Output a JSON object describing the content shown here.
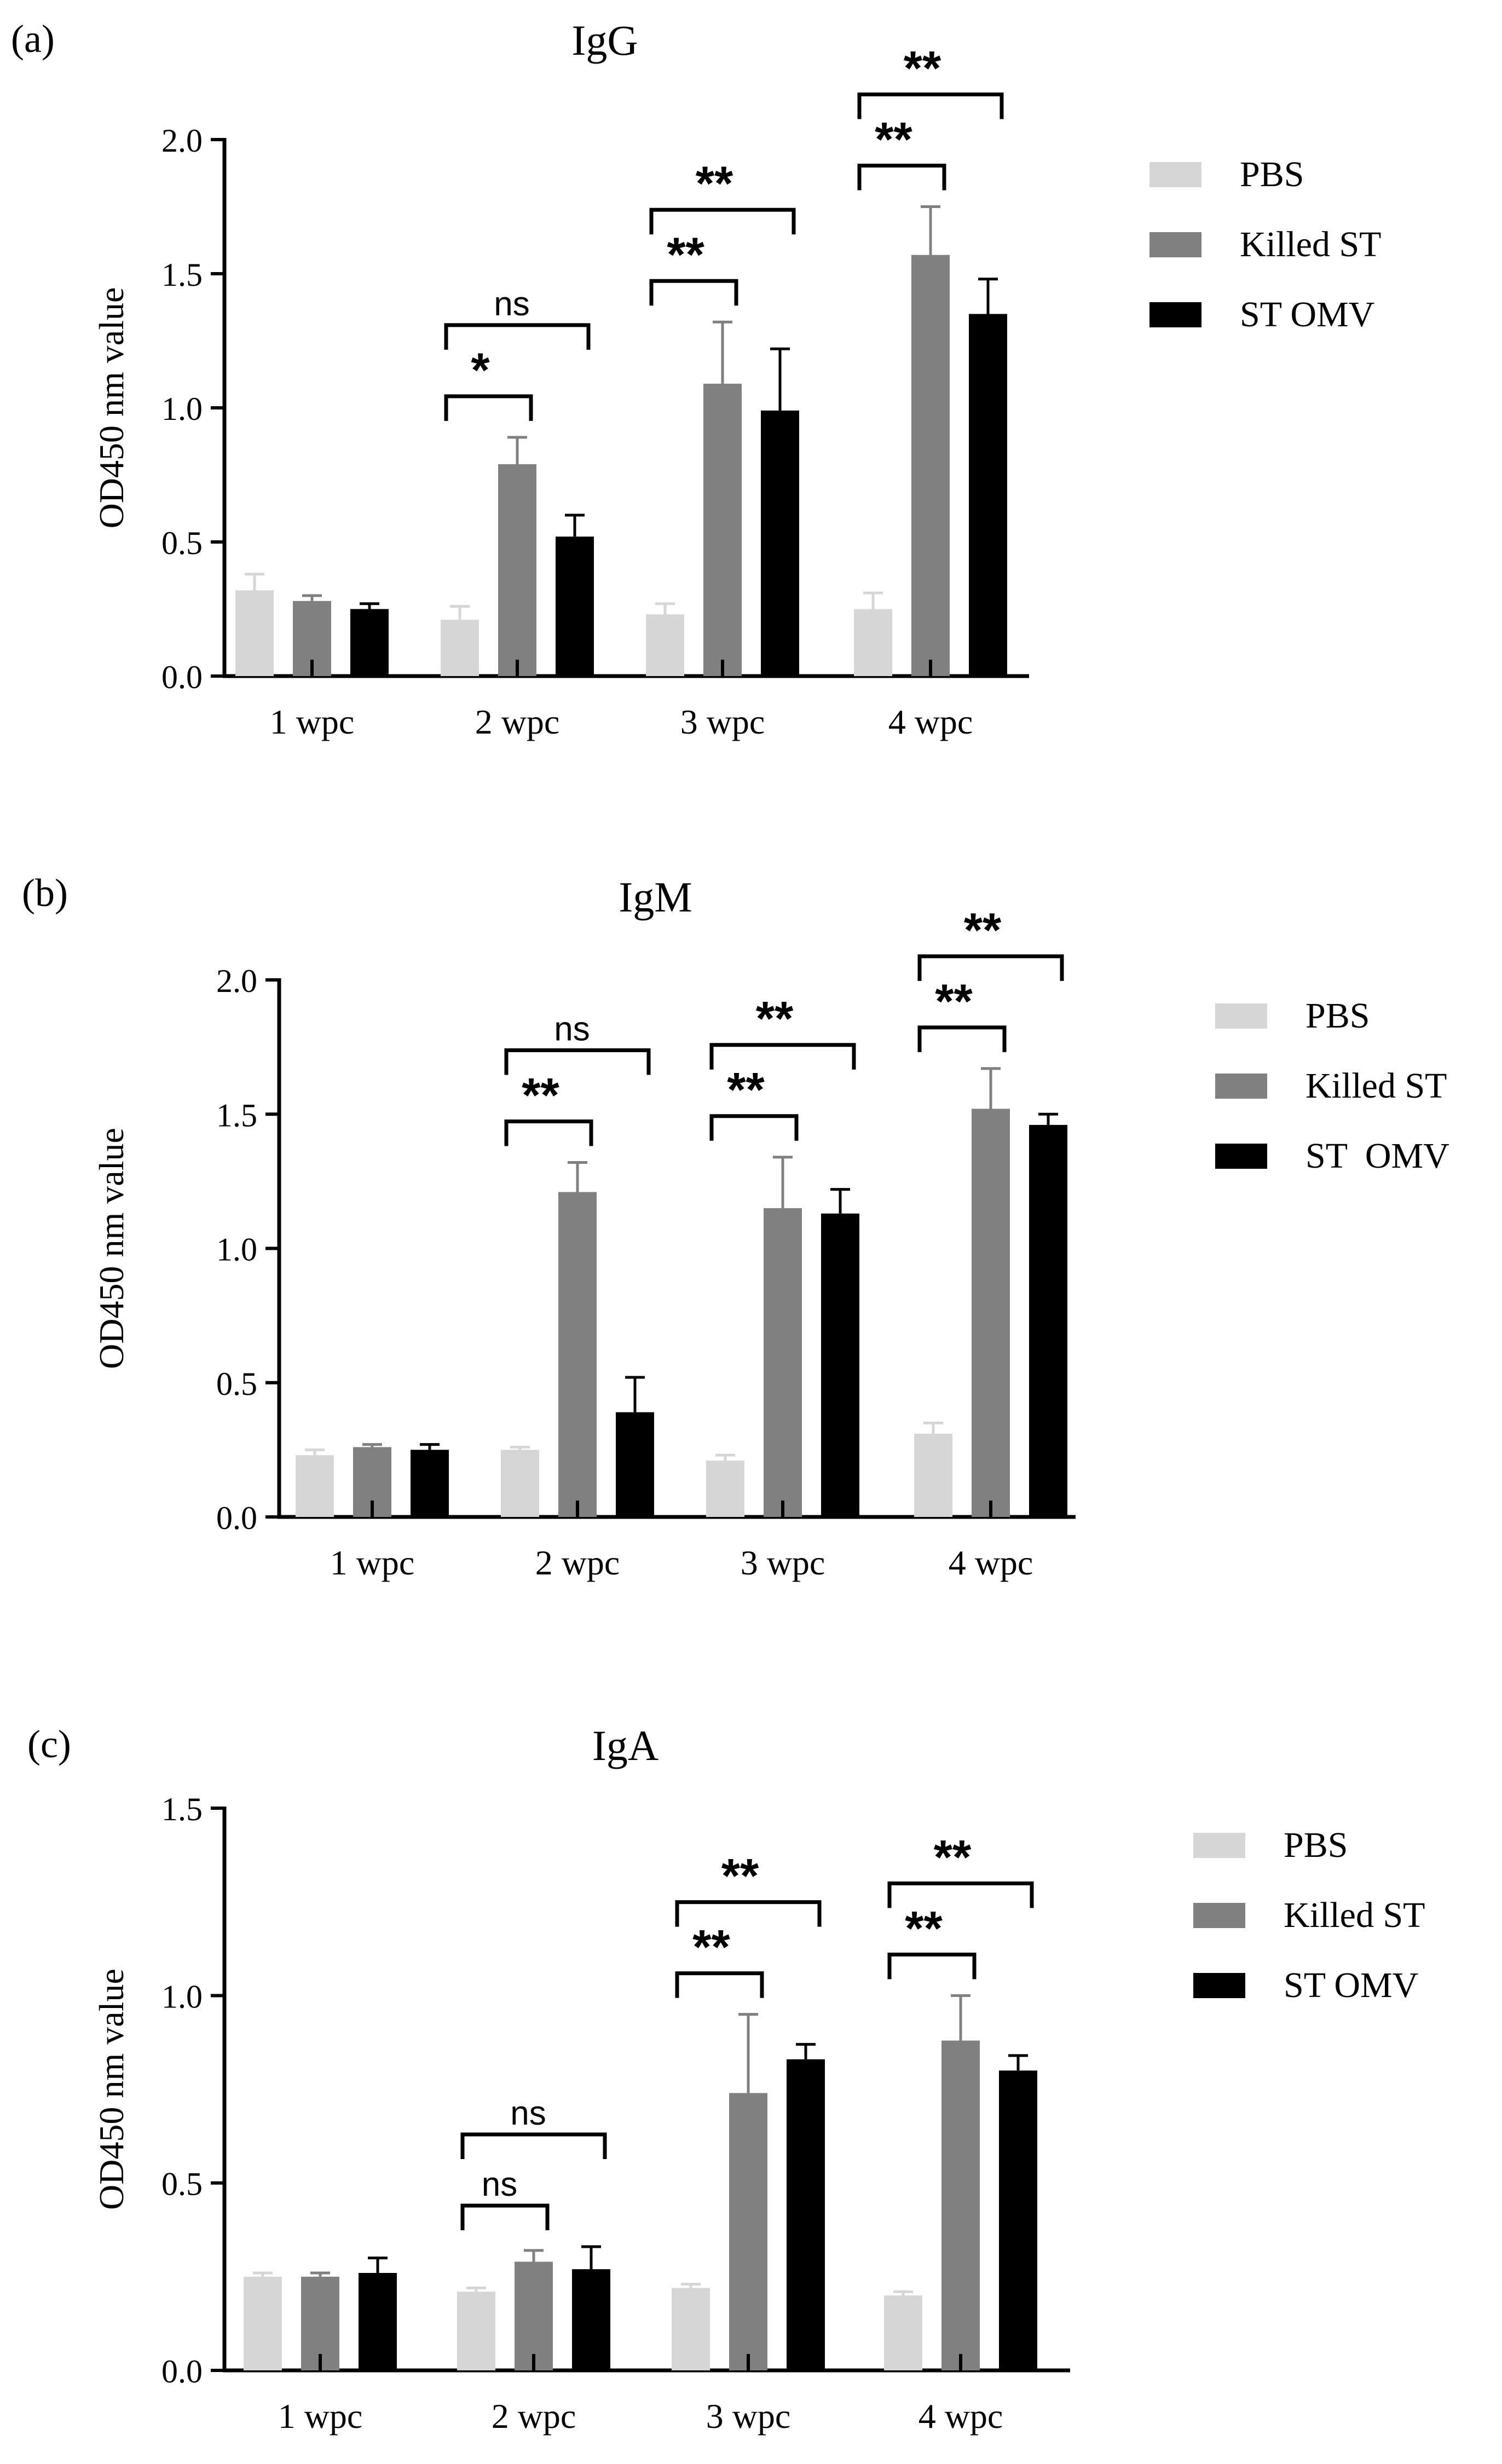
{
  "figure": {
    "panels": [
      {
        "panel_label": "(a)",
        "title": "IgG",
        "ylabel": "OD450 nm value",
        "yticks": [
          "0.0",
          "0.5",
          "1.0",
          "1.5",
          "2.0"
        ],
        "categories": [
          "1 wpc",
          "2 wpc",
          "3 wpc",
          "4 wpc"
        ],
        "legend": [
          "PBS",
          "Killed ST",
          "ST OMV"
        ]
      },
      {
        "panel_label": "(b)",
        "title": "IgM",
        "ylabel": "OD450 nm value",
        "yticks": [
          "0.0",
          "0.5",
          "1.0",
          "1.5",
          "2.0"
        ],
        "categories": [
          "1 wpc",
          "2 wpc",
          "3 wpc",
          "4 wpc"
        ],
        "legend": [
          "PBS",
          "Killed ST",
          "ST  OMV"
        ]
      },
      {
        "panel_label": "(c)",
        "title": "IgA",
        "ylabel": "OD450 nm value",
        "yticks": [
          "0.0",
          "0.5",
          "1.0",
          "1.5"
        ],
        "categories": [
          "1 wpc",
          "2 wpc",
          "3 wpc",
          "4 wpc"
        ],
        "legend": [
          "PBS",
          "Killed ST",
          "ST OMV"
        ]
      }
    ]
  },
  "chart_data": [
    {
      "type": "bar",
      "title": "IgG",
      "panel": "(a)",
      "xlabel": "",
      "ylabel": "OD450 nm value",
      "ylim": [
        0,
        2.0
      ],
      "categories": [
        "1 wpc",
        "2 wpc",
        "3 wpc",
        "4 wpc"
      ],
      "series": [
        {
          "name": "PBS",
          "color": "#d6d6d6",
          "values": [
            0.32,
            0.21,
            0.23,
            0.25
          ],
          "errors": [
            0.06,
            0.05,
            0.04,
            0.06
          ]
        },
        {
          "name": "Killed ST",
          "color": "#808080",
          "values": [
            0.28,
            0.79,
            1.09,
            1.57
          ],
          "errors": [
            0.02,
            0.1,
            0.23,
            0.18
          ]
        },
        {
          "name": "ST OMV",
          "color": "#000000",
          "values": [
            0.25,
            0.52,
            0.99,
            1.35
          ],
          "errors": [
            0.02,
            0.08,
            0.23,
            0.13
          ]
        }
      ],
      "significance": [
        {
          "category": "2 wpc",
          "from": "PBS",
          "to": "Killed ST",
          "label": "*"
        },
        {
          "category": "2 wpc",
          "from": "PBS",
          "to": "ST OMV",
          "label": "ns"
        },
        {
          "category": "3 wpc",
          "from": "PBS",
          "to": "Killed ST",
          "label": "**"
        },
        {
          "category": "3 wpc",
          "from": "PBS",
          "to": "ST OMV",
          "label": "**"
        },
        {
          "category": "4 wpc",
          "from": "PBS",
          "to": "Killed ST",
          "label": "**"
        },
        {
          "category": "4 wpc",
          "from": "PBS",
          "to": "ST OMV",
          "label": "**"
        }
      ]
    },
    {
      "type": "bar",
      "title": "IgM",
      "panel": "(b)",
      "xlabel": "",
      "ylabel": "OD450 nm value",
      "ylim": [
        0,
        2.0
      ],
      "categories": [
        "1 wpc",
        "2 wpc",
        "3 wpc",
        "4 wpc"
      ],
      "series": [
        {
          "name": "PBS",
          "color": "#d6d6d6",
          "values": [
            0.23,
            0.25,
            0.21,
            0.31
          ],
          "errors": [
            0.02,
            0.01,
            0.02,
            0.04
          ]
        },
        {
          "name": "Killed ST",
          "color": "#808080",
          "values": [
            0.26,
            1.21,
            1.15,
            1.52
          ],
          "errors": [
            0.01,
            0.11,
            0.19,
            0.15
          ]
        },
        {
          "name": "ST  OMV",
          "color": "#000000",
          "values": [
            0.25,
            0.39,
            1.13,
            1.46
          ],
          "errors": [
            0.02,
            0.13,
            0.09,
            0.04
          ]
        }
      ],
      "significance": [
        {
          "category": "2 wpc",
          "from": "PBS",
          "to": "Killed ST",
          "label": "**"
        },
        {
          "category": "2 wpc",
          "from": "PBS",
          "to": "ST OMV",
          "label": "ns"
        },
        {
          "category": "3 wpc",
          "from": "PBS",
          "to": "Killed ST",
          "label": "**"
        },
        {
          "category": "3 wpc",
          "from": "PBS",
          "to": "ST OMV",
          "label": "**"
        },
        {
          "category": "4 wpc",
          "from": "PBS",
          "to": "Killed ST",
          "label": "**"
        },
        {
          "category": "4 wpc",
          "from": "PBS",
          "to": "ST OMV",
          "label": "**"
        }
      ]
    },
    {
      "type": "bar",
      "title": "IgA",
      "panel": "(c)",
      "xlabel": "",
      "ylabel": "OD450 nm value",
      "ylim": [
        0,
        1.5
      ],
      "categories": [
        "1 wpc",
        "2 wpc",
        "3 wpc",
        "4 wpc"
      ],
      "series": [
        {
          "name": "PBS",
          "color": "#d6d6d6",
          "values": [
            0.25,
            0.21,
            0.22,
            0.2
          ],
          "errors": [
            0.01,
            0.01,
            0.01,
            0.01
          ]
        },
        {
          "name": "Killed ST",
          "color": "#808080",
          "values": [
            0.25,
            0.29,
            0.74,
            0.88
          ],
          "errors": [
            0.01,
            0.03,
            0.21,
            0.12
          ]
        },
        {
          "name": "ST OMV",
          "color": "#000000",
          "values": [
            0.26,
            0.27,
            0.83,
            0.8
          ],
          "errors": [
            0.04,
            0.06,
            0.04,
            0.04
          ]
        }
      ],
      "significance": [
        {
          "category": "2 wpc",
          "from": "PBS",
          "to": "Killed ST",
          "label": "ns"
        },
        {
          "category": "2 wpc",
          "from": "PBS",
          "to": "ST OMV",
          "label": "ns"
        },
        {
          "category": "3 wpc",
          "from": "PBS",
          "to": "Killed ST",
          "label": "**"
        },
        {
          "category": "3 wpc",
          "from": "PBS",
          "to": "ST OMV",
          "label": "**"
        },
        {
          "category": "4 wpc",
          "from": "PBS",
          "to": "Killed ST",
          "label": "**"
        },
        {
          "category": "4 wpc",
          "from": "PBS",
          "to": "ST OMV",
          "label": "**"
        }
      ]
    }
  ]
}
